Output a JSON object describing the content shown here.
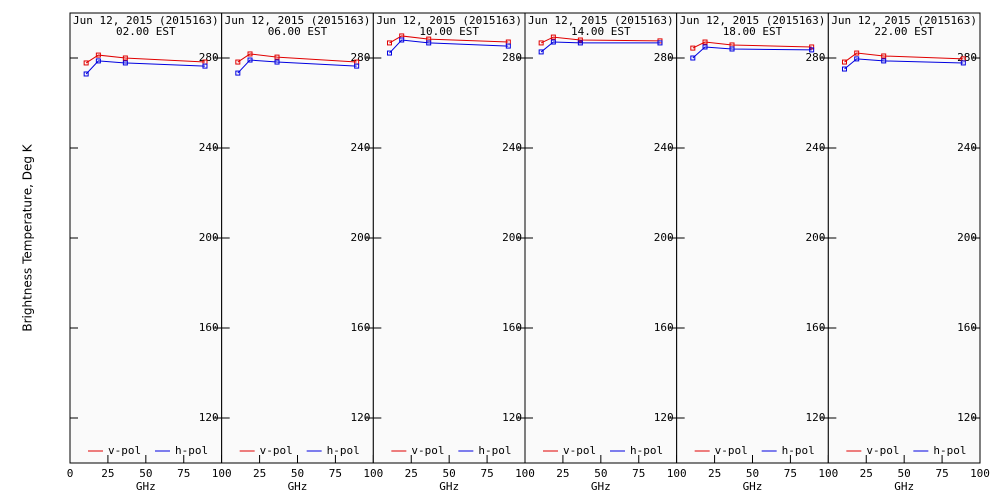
{
  "chart_data": [
    {
      "type": "line",
      "title": "Jun 12, 2015 (2015163)",
      "subtitle": "02.00 EST",
      "ylabel": "Brightness Temperature, Deg K",
      "xlabel": "GHz",
      "x": [
        10.65,
        18.7,
        36.5,
        89.0
      ],
      "xlim": [
        0,
        100
      ],
      "xticks": [
        0,
        25,
        50,
        75,
        100
      ],
      "ylim": [
        100,
        300
      ],
      "yticks": [
        120,
        160,
        200,
        240,
        280
      ],
      "series": [
        {
          "name": "v-pol",
          "color": "#e00000",
          "values": [
            277.8,
            281.3,
            280.0,
            278.2
          ]
        },
        {
          "name": "h-pol",
          "color": "#0000e0",
          "values": [
            272.9,
            278.7,
            277.8,
            276.4
          ]
        }
      ]
    },
    {
      "type": "line",
      "title": "Jun 12, 2015 (2015163)",
      "subtitle": "06.00 EST",
      "xlabel": "GHz",
      "x": [
        10.65,
        18.7,
        36.5,
        89.0
      ],
      "xlim": [
        0,
        100
      ],
      "xticks": [
        25,
        50,
        75,
        100
      ],
      "ylim": [
        100,
        300
      ],
      "yticks": [
        120,
        160,
        200,
        240,
        280
      ],
      "series": [
        {
          "name": "v-pol",
          "color": "#e00000",
          "values": [
            278.2,
            281.8,
            280.4,
            278.2
          ]
        },
        {
          "name": "h-pol",
          "color": "#0000e0",
          "values": [
            273.3,
            279.1,
            278.2,
            276.4
          ]
        }
      ]
    },
    {
      "type": "line",
      "title": "Jun 12, 2015 (2015163)",
      "subtitle": "10.00 EST",
      "xlabel": "GHz",
      "x": [
        10.65,
        18.7,
        36.5,
        89.0
      ],
      "xlim": [
        0,
        100
      ],
      "xticks": [
        25,
        50,
        75,
        100
      ],
      "ylim": [
        100,
        300
      ],
      "yticks": [
        120,
        160,
        200,
        240,
        280
      ],
      "series": [
        {
          "name": "v-pol",
          "color": "#e00000",
          "values": [
            286.7,
            289.8,
            288.4,
            287.1
          ]
        },
        {
          "name": "h-pol",
          "color": "#0000e0",
          "values": [
            282.2,
            288.0,
            286.7,
            285.3
          ]
        }
      ]
    },
    {
      "type": "line",
      "title": "Jun 12, 2015 (2015163)",
      "subtitle": "14.00 EST",
      "xlabel": "GHz",
      "x": [
        10.65,
        18.7,
        36.5,
        89.0
      ],
      "xlim": [
        0,
        100
      ],
      "xticks": [
        25,
        50,
        75,
        100
      ],
      "ylim": [
        100,
        300
      ],
      "yticks": [
        120,
        160,
        200,
        240,
        280
      ],
      "series": [
        {
          "name": "v-pol",
          "color": "#e00000",
          "values": [
            286.7,
            289.3,
            288.0,
            287.6
          ]
        },
        {
          "name": "h-pol",
          "color": "#0000e0",
          "values": [
            282.7,
            287.1,
            286.7,
            286.7
          ]
        }
      ]
    },
    {
      "type": "line",
      "title": "Jun 12, 2015 (2015163)",
      "subtitle": "18.00 EST",
      "xlabel": "GHz",
      "x": [
        10.65,
        18.7,
        36.5,
        89.0
      ],
      "xlim": [
        0,
        100
      ],
      "xticks": [
        25,
        50,
        75,
        100
      ],
      "ylim": [
        100,
        300
      ],
      "yticks": [
        120,
        160,
        200,
        240,
        280
      ],
      "series": [
        {
          "name": "v-pol",
          "color": "#e00000",
          "values": [
            284.4,
            287.1,
            285.8,
            284.9
          ]
        },
        {
          "name": "h-pol",
          "color": "#0000e0",
          "values": [
            280.0,
            284.9,
            284.0,
            283.6
          ]
        }
      ]
    },
    {
      "type": "line",
      "title": "Jun 12, 2015 (2015163)",
      "subtitle": "22.00 EST",
      "xlabel": "GHz",
      "x": [
        10.65,
        18.7,
        36.5,
        89.0
      ],
      "xlim": [
        0,
        100
      ],
      "xticks": [
        25,
        50,
        75,
        100
      ],
      "ylim": [
        100,
        300
      ],
      "yticks": [
        120,
        160,
        200,
        240,
        280
      ],
      "series": [
        {
          "name": "v-pol",
          "color": "#e00000",
          "values": [
            278.2,
            282.2,
            280.9,
            279.6
          ]
        },
        {
          "name": "h-pol",
          "color": "#0000e0",
          "values": [
            275.1,
            279.6,
            278.7,
            277.8
          ]
        }
      ]
    }
  ]
}
